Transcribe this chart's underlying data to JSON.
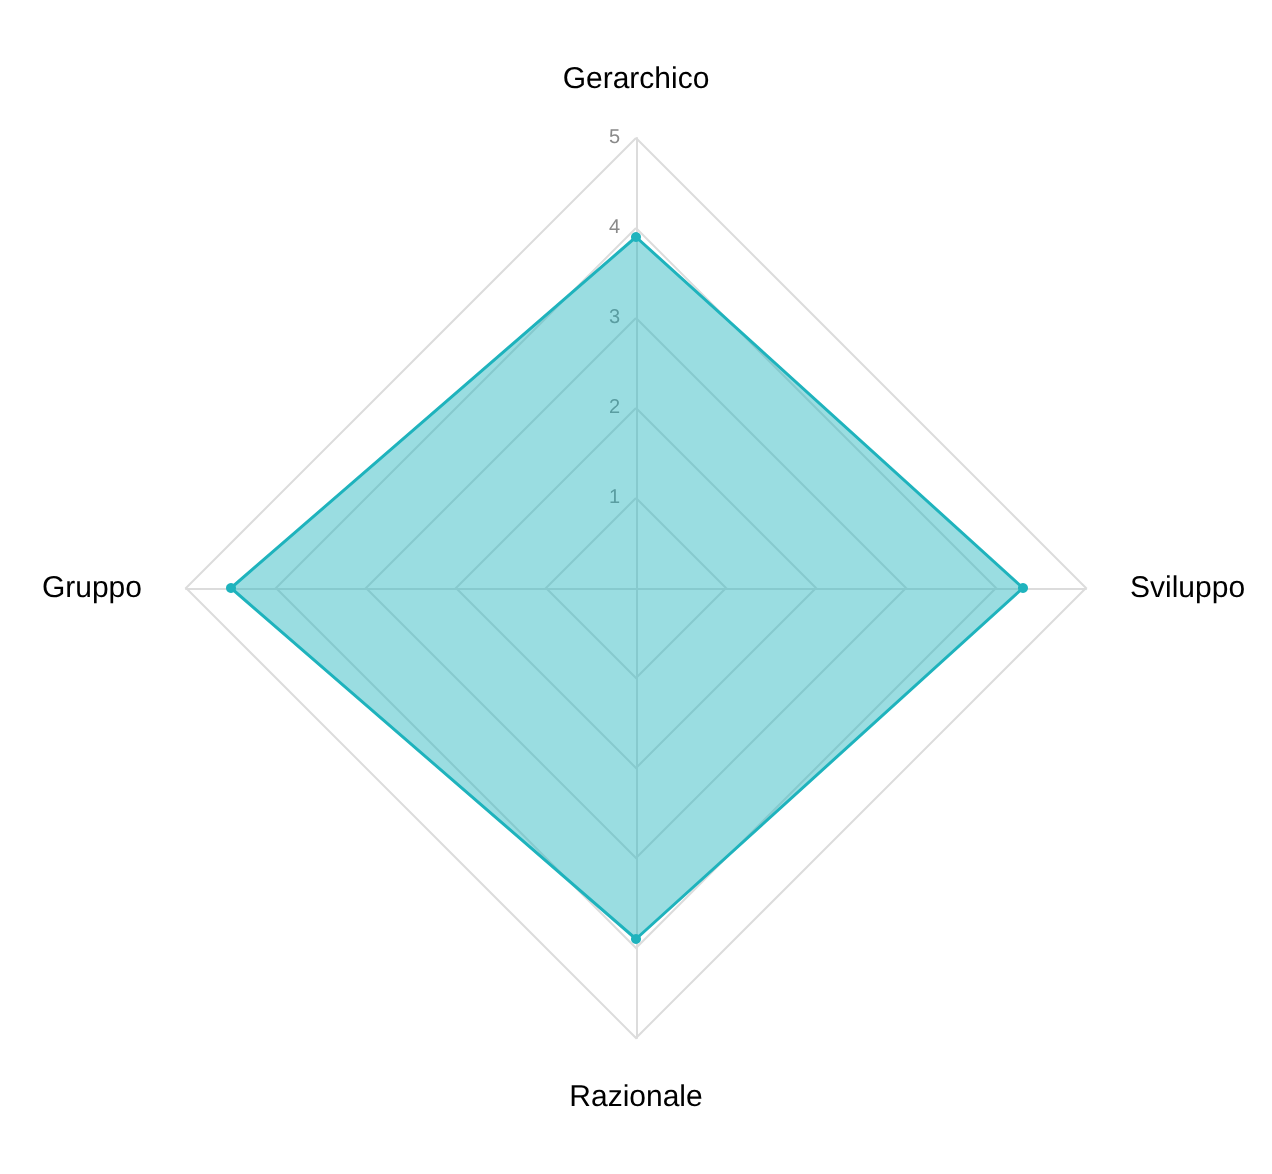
{
  "chart_data": {
    "type": "radar",
    "categories": [
      "Gerarchico",
      "Sviluppo",
      "Razionale",
      "Gruppo"
    ],
    "series": [
      {
        "color": "#1fb3bd",
        "values": [
          3.9,
          4.3,
          3.9,
          4.5
        ]
      }
    ],
    "ylim": [
      0,
      5
    ],
    "yticks": [
      1,
      2,
      3,
      4,
      5
    ],
    "grid": true,
    "marker": "circle"
  }
}
